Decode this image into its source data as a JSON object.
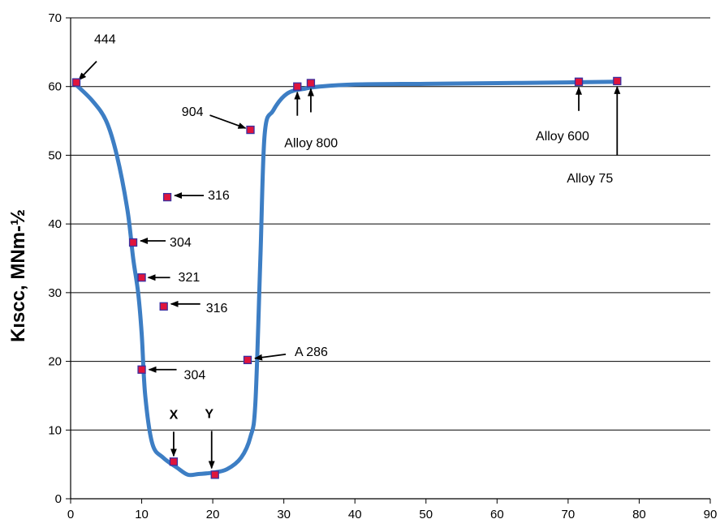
{
  "chart_data": {
    "type": "scatter",
    "title": "",
    "xlabel": "",
    "ylabel": "Kıscc, MNm-½",
    "xlim": [
      0,
      90
    ],
    "ylim": [
      0,
      70
    ],
    "xticks": [
      0,
      10,
      20,
      30,
      40,
      50,
      60,
      70,
      80,
      90
    ],
    "yticks": [
      0,
      10,
      20,
      30,
      40,
      50,
      60,
      70
    ],
    "grid": "horizontal",
    "legend": "none",
    "colors": {
      "curve": "#3d7ec4",
      "marker_fill": "#e0143c",
      "marker_edge": "#3a2fa0",
      "grid": "#000000"
    },
    "curve": {
      "x": [
        0.5,
        3,
        5,
        6.5,
        8,
        8.8,
        9.5,
        10,
        10.5,
        11.5,
        13,
        15,
        16.5,
        18,
        20,
        22,
        24,
        25.3,
        26,
        26.7,
        27.3,
        28.5,
        30.5,
        33,
        35,
        40,
        50,
        60,
        70,
        77
      ],
      "y": [
        60.5,
        58,
        55,
        50,
        42,
        35,
        30,
        24,
        15,
        8,
        6,
        4.5,
        3.5,
        3.6,
        3.8,
        4.3,
        6,
        9,
        14,
        35,
        53,
        56.5,
        59,
        59.7,
        60,
        60.3,
        60.4,
        60.5,
        60.6,
        60.7
      ]
    },
    "points": [
      {
        "x": 0.8,
        "y": 60.6,
        "label": "444"
      },
      {
        "x": 25.3,
        "y": 53.7,
        "label": "904"
      },
      {
        "x": 13.6,
        "y": 43.9,
        "label": "316"
      },
      {
        "x": 8.8,
        "y": 37.3,
        "label": "304"
      },
      {
        "x": 10.0,
        "y": 32.2,
        "label": "321"
      },
      {
        "x": 13.1,
        "y": 28.0,
        "label": "316"
      },
      {
        "x": 10.0,
        "y": 18.8,
        "label": "304"
      },
      {
        "x": 24.9,
        "y": 20.2,
        "label": "A 286"
      },
      {
        "x": 14.5,
        "y": 5.4,
        "label": "X"
      },
      {
        "x": 20.3,
        "y": 3.5,
        "label": "Y"
      },
      {
        "x": 31.9,
        "y": 60.0,
        "label": "Alloy 800"
      },
      {
        "x": 33.8,
        "y": 60.5,
        "label": ""
      },
      {
        "x": 71.5,
        "y": 60.7,
        "label": "Alloy 600"
      },
      {
        "x": 76.9,
        "y": 60.8,
        "label": "Alloy 75"
      }
    ]
  }
}
